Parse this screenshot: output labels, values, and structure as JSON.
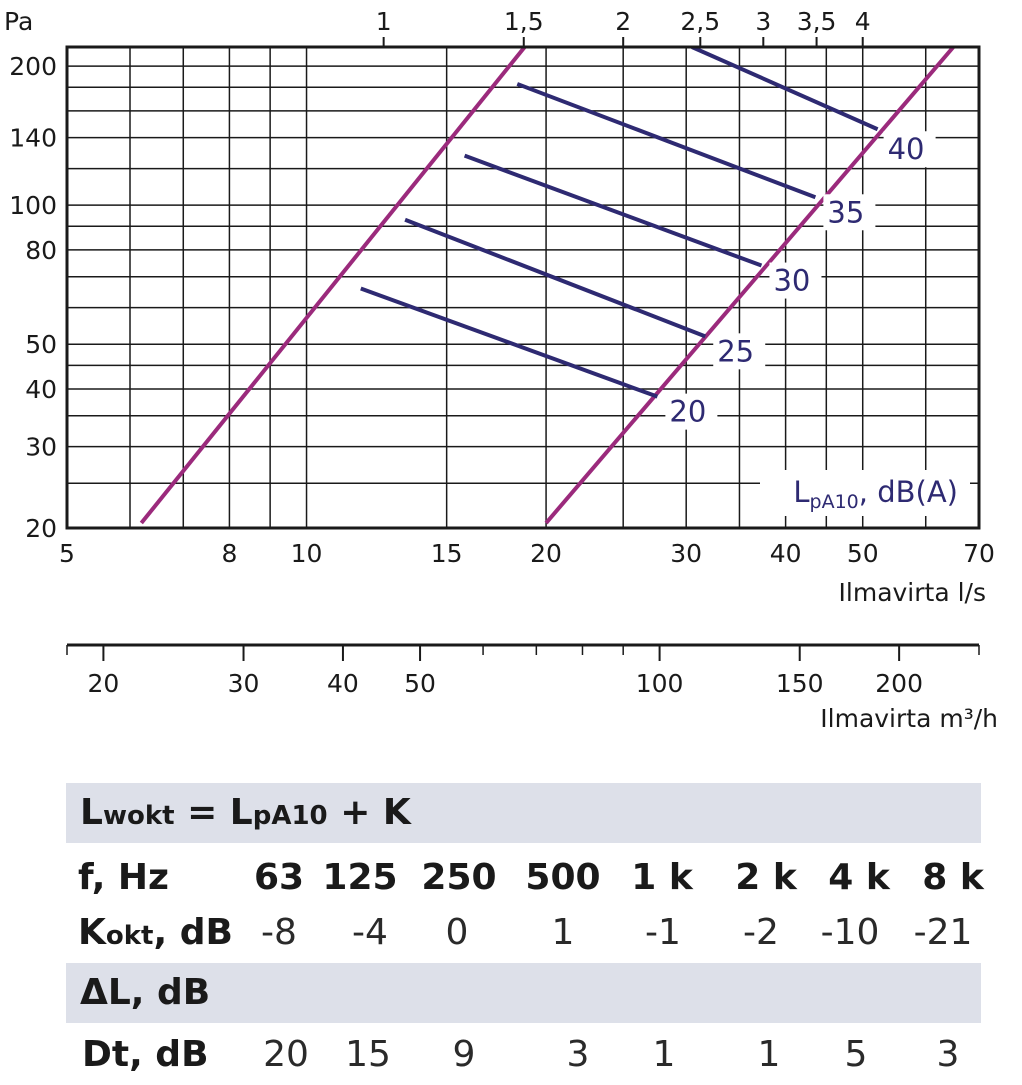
{
  "chart_data": {
    "type": "line",
    "title": "",
    "ylabel": "Pa",
    "xlabel": "Ilmavirta l/s",
    "x2label": "Ilmavirta m³/h",
    "x_scale": "log",
    "y_scale": "log",
    "xlim": [
      5,
      70
    ],
    "ylim": [
      20,
      220
    ],
    "x_ticks": [
      5,
      8,
      10,
      15,
      20,
      30,
      40,
      50,
      70
    ],
    "x_tick_labels": [
      "5",
      "8",
      "10",
      "15",
      "20",
      "30",
      "40",
      "50",
      "70"
    ],
    "y_ticks": [
      20,
      30,
      40,
      50,
      80,
      100,
      140,
      200
    ],
    "y_tick_labels": [
      "20",
      "30",
      "40",
      "50",
      "80",
      "100",
      "140",
      "200"
    ],
    "top_ticks": [
      1,
      1.5,
      2,
      2.5,
      3,
      3.5,
      4
    ],
    "top_tick_labels": [
      "1",
      "1,5",
      "2",
      "2,5",
      "3",
      "3,5",
      "4"
    ],
    "m3h_ticks": [
      20,
      30,
      40,
      50,
      100,
      150,
      200
    ],
    "m3h_tick_labels": [
      "20",
      "30",
      "40",
      "50",
      "100",
      "150",
      "200"
    ],
    "grid": true,
    "boundary_lines": [
      {
        "points": [
          [
            6.2,
            20.5
          ],
          [
            18.8,
            220
          ]
        ]
      },
      {
        "points": [
          [
            20,
            20.5
          ],
          [
            65,
            220
          ]
        ]
      }
    ],
    "series": [
      {
        "name": "20",
        "points": [
          [
            11.7,
            66
          ],
          [
            27.6,
            38.5
          ]
        ]
      },
      {
        "name": "25",
        "points": [
          [
            13.3,
            93
          ],
          [
            31.7,
            52
          ]
        ]
      },
      {
        "name": "30",
        "points": [
          [
            15.8,
            128
          ],
          [
            37.3,
            74
          ]
        ]
      },
      {
        "name": "35",
        "points": [
          [
            18.4,
            183
          ],
          [
            43.6,
            104
          ]
        ]
      },
      {
        "name": "40",
        "points": [
          [
            30.5,
            220
          ],
          [
            52.2,
            146
          ]
        ]
      }
    ],
    "legend_text": "LpA10, dB(A)",
    "legend_main": "L",
    "legend_sub": "pA10",
    "legend_rest": ", dB(A)",
    "legend_placement": "bottom-right",
    "colors": {
      "boundary": "#9b2a7c",
      "series": "#2e2a72",
      "grid": "#1a1a1a",
      "band": "#dde0e9"
    }
  },
  "table": {
    "formula_prefix": "L",
    "formula_sub1": "wokt",
    "formula_mid": " = L",
    "formula_sub2": "pA10",
    "formula_suffix": " + K",
    "freq_label": "f, Hz",
    "freqs": [
      "63",
      "125",
      "250",
      "500",
      "1 k",
      "2 k",
      "4 k",
      "8 k"
    ],
    "k_label_main": "K",
    "k_label_sub": "okt",
    "k_label_rest": ", dB",
    "k_values": [
      "-8",
      "-4",
      "0",
      "1",
      "-1",
      "-2",
      "-10",
      "-21"
    ],
    "delta_label": "ΔL, dB",
    "dt_label": "Dt, dB",
    "dt_values": [
      "20",
      "15",
      "9",
      "3",
      "1",
      "1",
      "5",
      "3"
    ]
  }
}
